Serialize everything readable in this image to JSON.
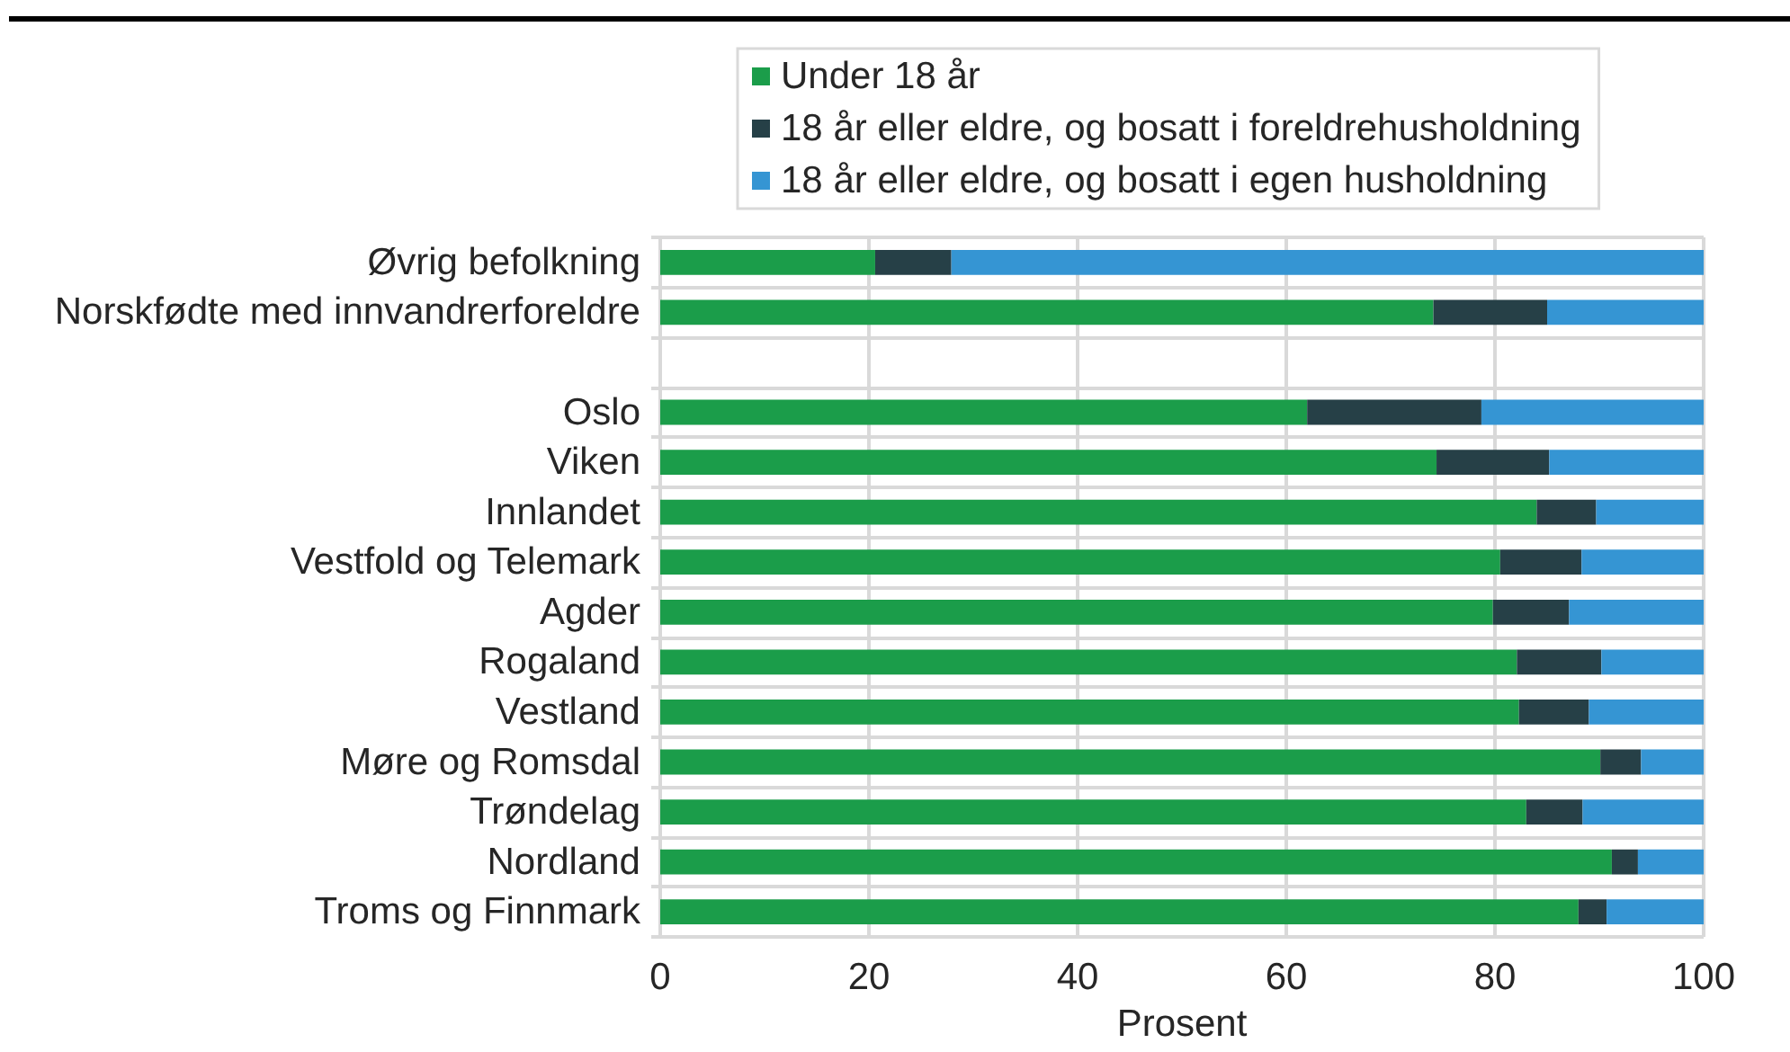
{
  "chart_data": {
    "type": "bar",
    "orientation": "horizontal",
    "stacked": true,
    "categories": [
      "Øvrig befolkning",
      "Norskfødte med innvandrerforeldre",
      null,
      "Oslo",
      "Viken",
      "Innlandet",
      "Vestfold og Telemark",
      "Agder",
      "Rogaland",
      "Vestland",
      "Møre og Romsdal",
      "Trøndelag",
      "Nordland",
      "Troms og Finnmark"
    ],
    "series": [
      {
        "name": "Under 18 år",
        "color": "#1b9d4a",
        "values": [
          20.6,
          74.1,
          null,
          62.0,
          74.4,
          84.0,
          80.5,
          79.8,
          82.1,
          82.3,
          90.1,
          83.0,
          91.2,
          88.0
        ]
      },
      {
        "name": "18 år eller eldre, og bosatt i foreldrehusholdning",
        "color": "#264047",
        "values": [
          7.3,
          10.9,
          null,
          16.7,
          10.8,
          5.7,
          7.8,
          7.3,
          8.1,
          6.7,
          3.9,
          5.4,
          2.5,
          2.7
        ]
      },
      {
        "name": "18 år eller eldre, og bosatt i egen husholdning",
        "color": "#3595d3",
        "values": [
          72.1,
          15.0,
          null,
          21.3,
          14.8,
          10.3,
          11.7,
          12.9,
          9.8,
          11.0,
          6.0,
          11.6,
          6.3,
          9.3
        ]
      }
    ],
    "xlabel": "Prosent",
    "xlim": [
      0,
      100
    ],
    "xticks": [
      0,
      20,
      40,
      60,
      80,
      100
    ],
    "grid": true,
    "legend": "top"
  }
}
